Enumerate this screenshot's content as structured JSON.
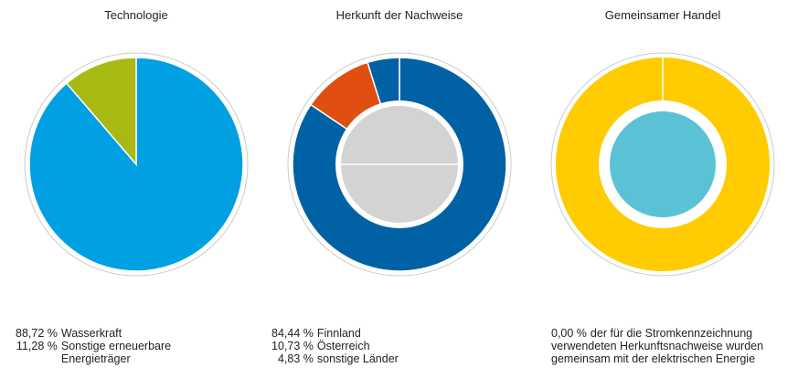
{
  "chart_data": [
    {
      "type": "pie",
      "title": "Technologie",
      "categories": [
        "Wasserkraft",
        "Sonstige erneuerbare Energieträger"
      ],
      "values": [
        88.72,
        11.28
      ],
      "value_labels": [
        "88,72 %",
        "11,28 %"
      ],
      "colors": [
        "#00a0e3",
        "#a8b914"
      ]
    },
    {
      "type": "donut",
      "title": "Herkunft der Nachweise",
      "categories": [
        "Finnland",
        "Österreich",
        "sonstige Länder"
      ],
      "values": [
        84.44,
        10.73,
        4.83
      ],
      "value_labels": [
        "84,44 %",
        "10,73 %",
        "4,83 %"
      ],
      "colors": [
        "#0062a4",
        "#e04e12",
        "#0062a4"
      ],
      "center_color": "#d3d3d3"
    },
    {
      "type": "donut",
      "title": "Gemeinsamer Handel",
      "categories": [
        "der für die Stromkennzeichnung verwendeten Herkunftsnachweise wurden gemeinsam mit der elektrischen Energie"
      ],
      "values": [
        0
      ],
      "value_labels": [
        "0,00 %"
      ],
      "colors": [
        "#ffffff"
      ],
      "ring_color": "#fecc00",
      "center_color": "#5bc2d6"
    }
  ]
}
